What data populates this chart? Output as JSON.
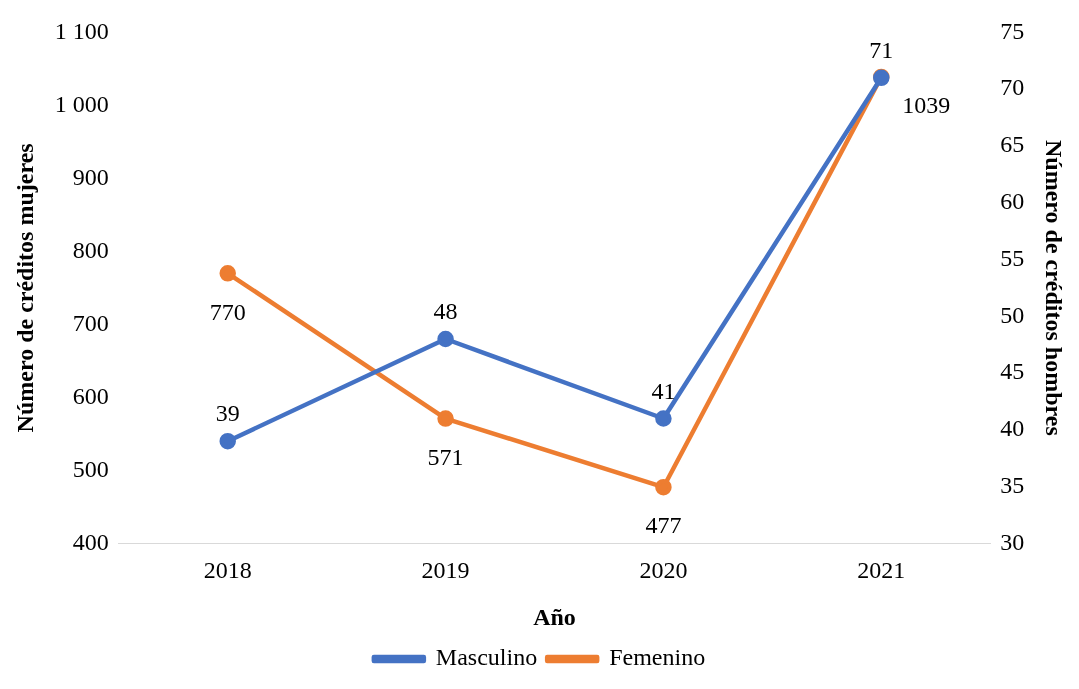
{
  "chart_data": {
    "type": "line",
    "xlabel": "Año",
    "ylabel": "Número de créditos mujeres",
    "y2label": "Número de créditos hombres",
    "categories": [
      "2018",
      "2019",
      "2020",
      "2021"
    ],
    "series": [
      {
        "name": "Femenino",
        "color": "#ed7d31",
        "values": [
          770,
          571,
          477,
          1039
        ]
      },
      {
        "name": "Masculino",
        "color": "#4472c4",
        "values": [
          39,
          48,
          41,
          71
        ],
        "axis": "y2"
      }
    ],
    "ylim": [
      400,
      1100
    ],
    "yticks": [
      400,
      500,
      600,
      700,
      800,
      900,
      {
        "value": 1000,
        "label": "1 000"
      },
      {
        "value": 1100,
        "label": "1 100"
      }
    ],
    "y2lim": [
      30,
      75
    ],
    "y2ticks": [
      30,
      35,
      40,
      45,
      50,
      55,
      60,
      65,
      70,
      75
    ],
    "data_labels": true,
    "legend": "bottom",
    "grid": false,
    "marker": "circle",
    "line_style": "solid"
  }
}
